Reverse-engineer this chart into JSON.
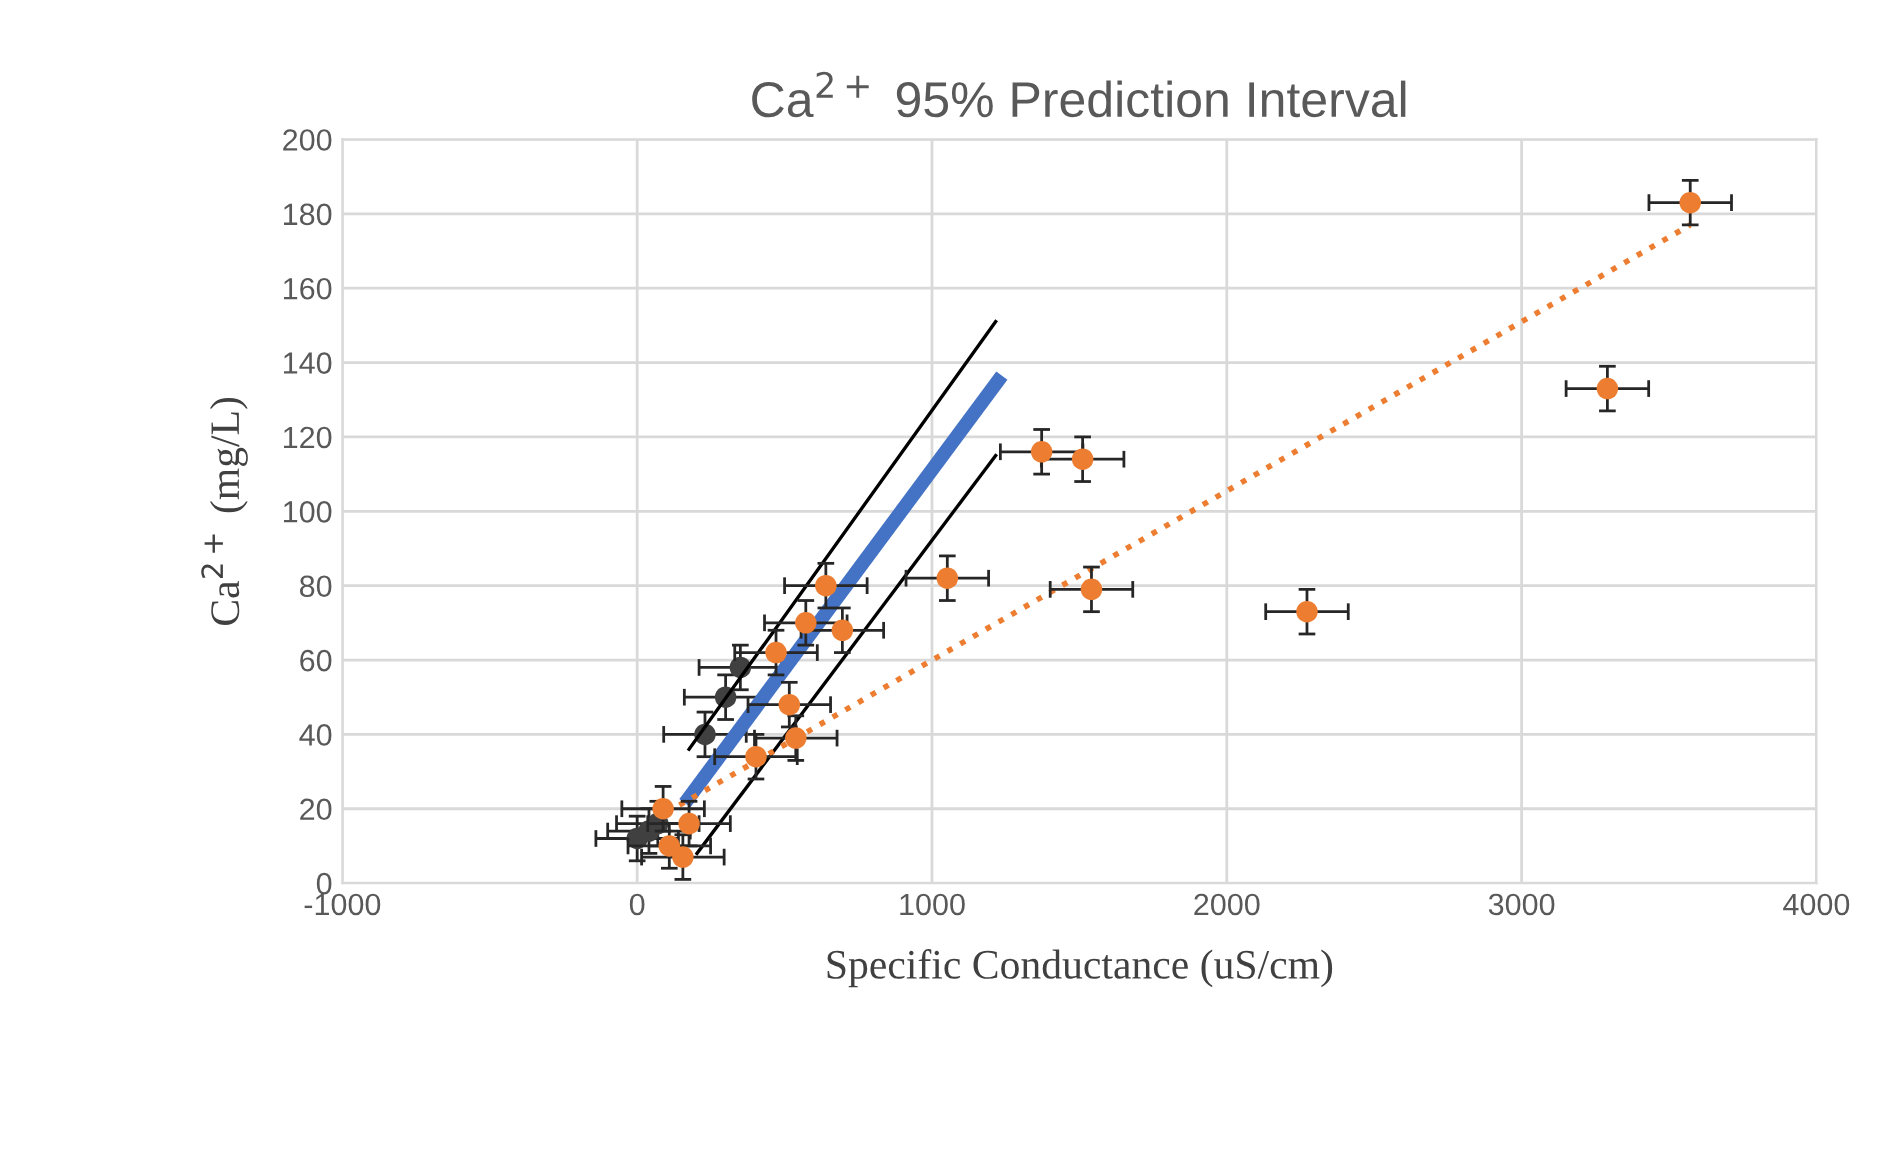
{
  "chart_data": {
    "type": "scatter",
    "title": "Ca$^{2+}$ 95% Prediction Interval",
    "xlabel": "Specific Conductance (uS/cm)",
    "ylabel": "Ca$^{2+}$ (mg/L)",
    "xlim": [
      -1000,
      4000
    ],
    "ylim": [
      0,
      200
    ],
    "xticks": [
      -1000,
      0,
      1000,
      2000,
      3000,
      4000
    ],
    "yticks": [
      0,
      20,
      40,
      60,
      80,
      100,
      120,
      140,
      160,
      180,
      200
    ],
    "grid": true,
    "series": [
      {
        "type": "scatter",
        "color": "#404040",
        "marker": "circle",
        "x": [
          0,
          40,
          70,
          230,
          300,
          350
        ],
        "values": [
          12,
          14,
          16,
          40,
          50,
          58
        ],
        "errors": [
          6,
          6,
          6,
          6,
          6,
          6
        ],
        "xerrors": [
          140,
          140,
          140,
          140,
          140,
          140
        ]
      },
      {
        "type": "line",
        "color": "#000000",
        "line_style": "solid",
        "x": [
          176,
          1216
        ],
        "values": [
          36,
          151
        ]
      },
      {
        "type": "line",
        "color": "#000000",
        "line_style": "solid",
        "x": [
          203,
          1216
        ],
        "values": [
          8,
          115
        ]
      },
      {
        "type": "line",
        "color": "#4472c4",
        "line_style": "solid",
        "x": [
          176,
          1223
        ],
        "values": [
          23,
          135
        ]
      },
      {
        "type": "line",
        "color": "#ed7d31",
        "line_style": "dotted",
        "x": [
          100,
          3572
        ],
        "values": [
          19,
          177
        ]
      },
      {
        "color": "#ed7d31",
        "marker": "circle",
        "x": [
          3572,
          3291,
          2272,
          1541,
          1372,
          1511,
          1052,
          640,
          572,
          696,
          471,
          516,
          538,
          403,
          109,
          176,
          155,
          88
        ],
        "values": [
          183,
          133,
          73,
          79,
          116,
          114,
          82,
          80,
          70,
          68,
          62,
          48,
          39,
          34,
          10,
          16,
          7,
          20
        ],
        "errors": [
          6,
          6,
          6,
          6,
          6,
          6,
          6,
          6,
          6,
          6,
          6,
          6,
          6,
          6,
          6,
          6,
          6,
          6
        ],
        "xerrors": [
          140,
          140,
          140,
          140,
          140,
          140,
          140,
          140,
          140,
          140,
          140,
          140,
          140,
          140,
          140,
          140,
          140,
          140
        ]
      }
    ]
  }
}
